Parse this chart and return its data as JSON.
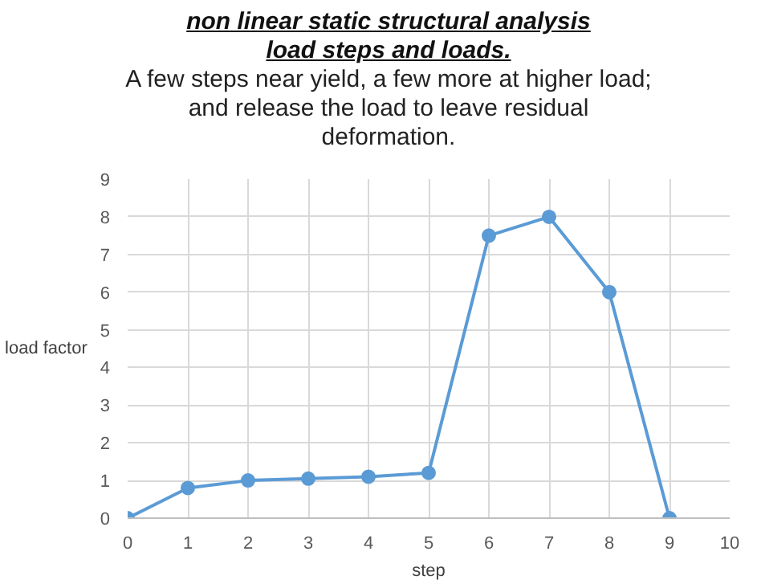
{
  "chart_data": {
    "type": "line",
    "title": "non linear static structural analysis\nload steps and loads.",
    "subtitle": "A few steps near yield, a few more at higher load;\nand release the load to leave residual\ndeformation.",
    "xlabel": "step",
    "ylabel": "load factor",
    "x": [
      0,
      1,
      2,
      3,
      4,
      5,
      6,
      7,
      8,
      9
    ],
    "series": [
      {
        "color": "#5b9bd5",
        "values": [
          0,
          0.8,
          1.0,
          1.05,
          1.1,
          1.2,
          7.5,
          8.0,
          6.0,
          0
        ]
      }
    ],
    "xlim": [
      0,
      10
    ],
    "ylim": [
      0,
      9
    ],
    "xticks": [
      0,
      1,
      2,
      3,
      4,
      5,
      6,
      7,
      8,
      9,
      10
    ],
    "yticks": [
      0,
      1,
      2,
      3,
      4,
      5,
      6,
      7,
      8,
      9
    ],
    "grid": true,
    "marker": "circle",
    "line_style": "solid"
  }
}
